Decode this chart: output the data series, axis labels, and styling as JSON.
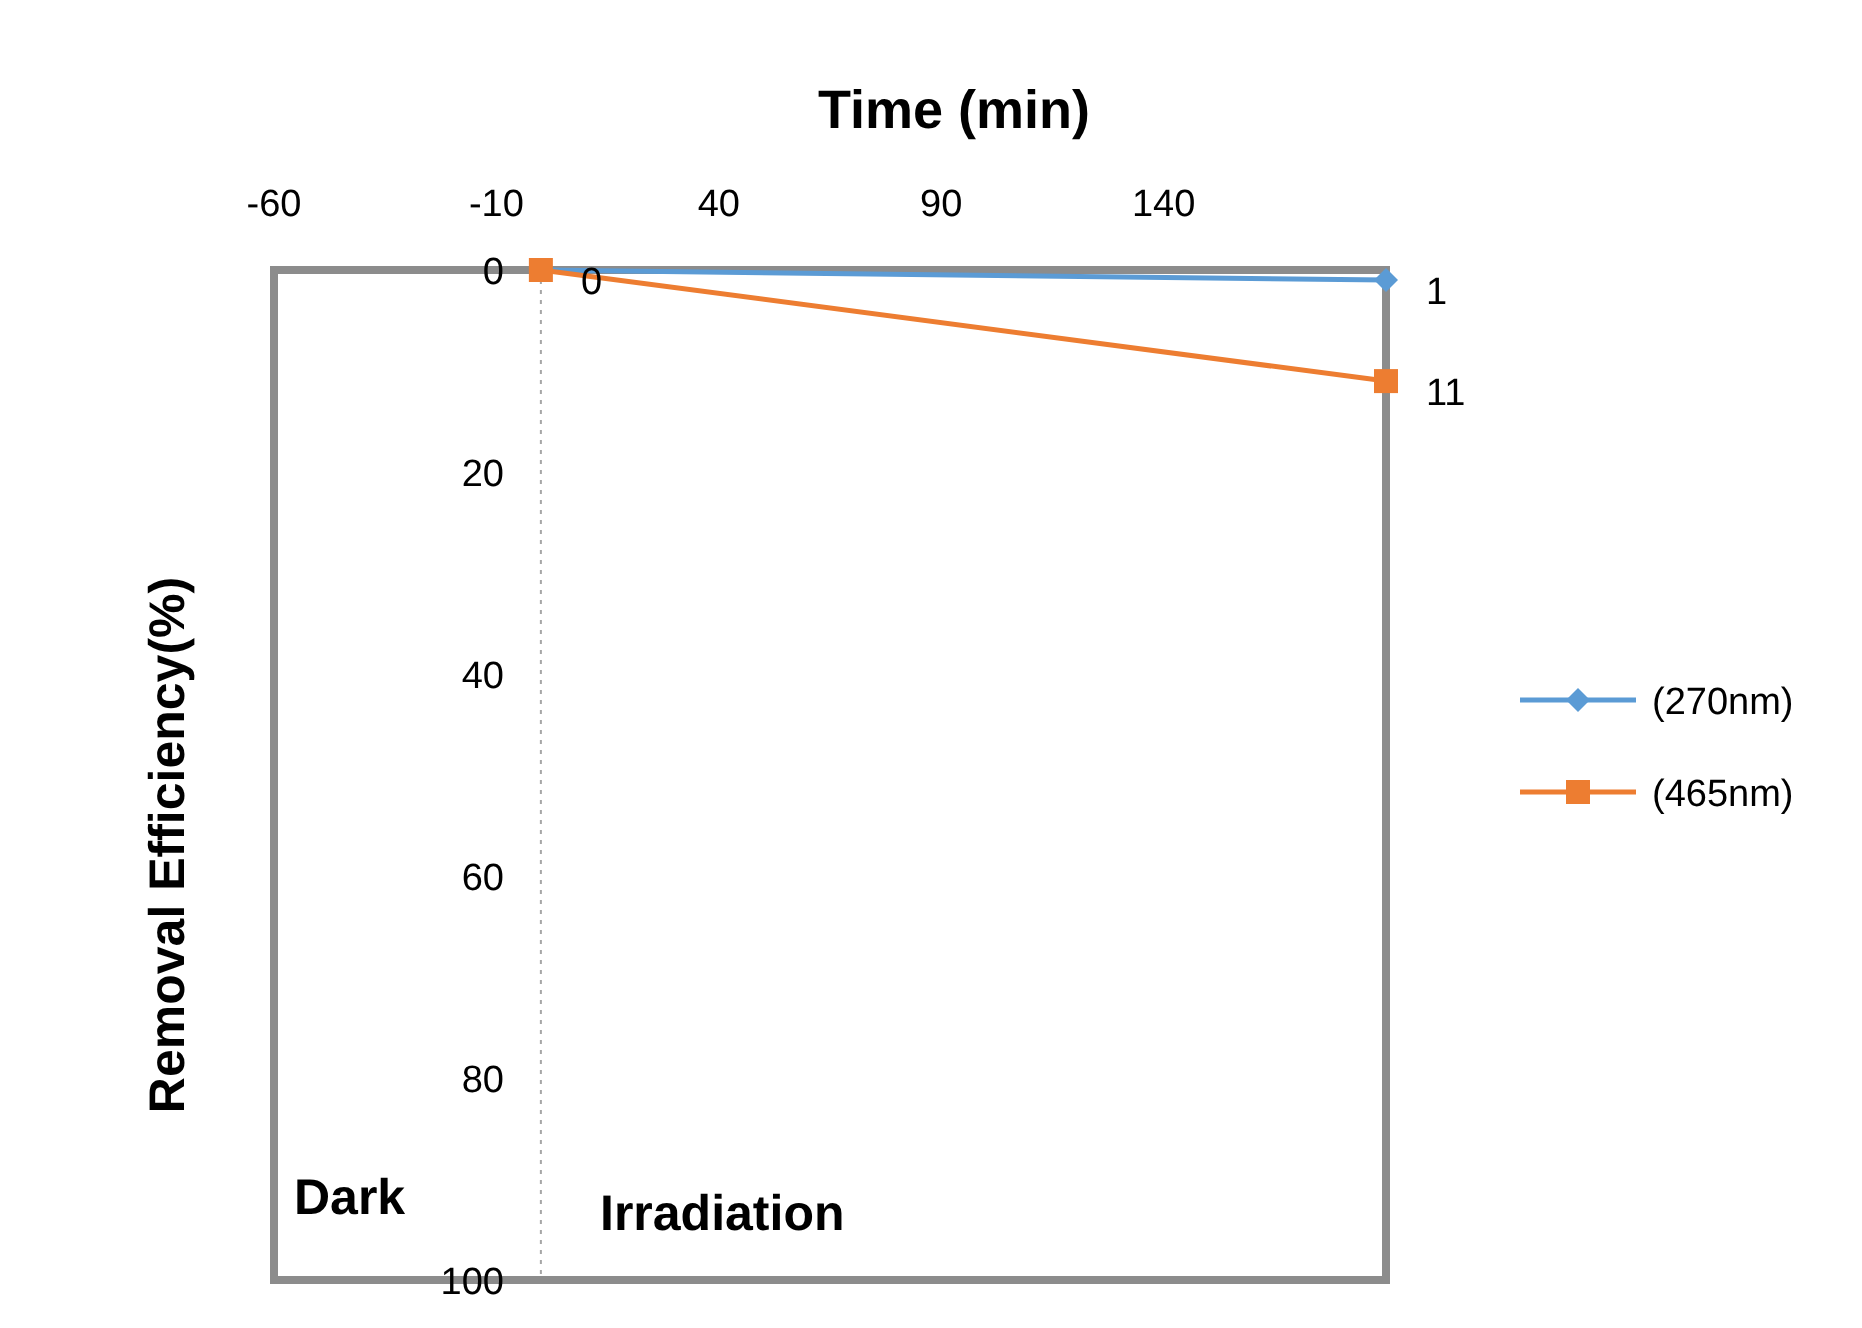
{
  "chart_data": {
    "type": "line",
    "xlabel": "Time (min)",
    "ylabel": "Removal Efficiency(%)",
    "xlim": [
      -60,
      190
    ],
    "xticks": [
      -60,
      -10,
      40,
      90,
      140
    ],
    "ylim": [
      100,
      0
    ],
    "yticks": [
      0,
      20,
      40,
      60,
      80,
      100
    ],
    "grid": false,
    "legend": "right",
    "line_style": "solid",
    "x": [
      0,
      190
    ],
    "series": [
      {
        "name": "(270nm)",
        "color": "#5b9bd5",
        "marker": "diamond",
        "values": [
          0,
          1
        ],
        "value_labels": [
          null,
          "1"
        ]
      },
      {
        "name": "(465nm)",
        "color": "#ed7d31",
        "marker": "square",
        "values": [
          0,
          11
        ],
        "value_labels": [
          "0",
          "11"
        ]
      }
    ],
    "ref_lines": [
      {
        "axis": "x",
        "value": 0,
        "color": "#a6a6a6",
        "line_style": "dotted"
      }
    ],
    "annotations": [
      "Dark",
      "Irradiation"
    ]
  }
}
